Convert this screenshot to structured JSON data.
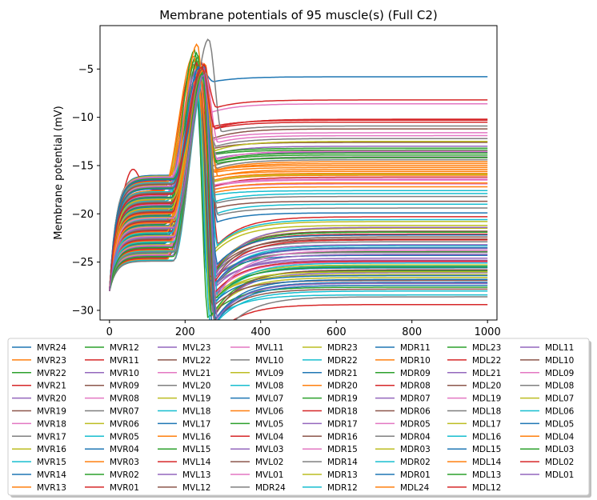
{
  "chart_data": {
    "type": "line",
    "title": "Membrane potentials of 95 muscle(s) (Full C2)",
    "xlabel": "",
    "ylabel": "Membrane potential (mV)",
    "xlim": [
      -25,
      1025
    ],
    "ylim": [
      -31,
      -0.5
    ],
    "xticks": [
      0,
      200,
      400,
      600,
      800,
      1000
    ],
    "yticks": [
      -30,
      -25,
      -20,
      -15,
      -10,
      -5
    ],
    "grid": false,
    "legend_position": "below plot, 8 columns",
    "palette": [
      "#1f77b4",
      "#ff7f0e",
      "#2ca02c",
      "#d62728",
      "#9467bd",
      "#8c564b",
      "#e377c2",
      "#7f7f7f",
      "#bcbd22",
      "#17becf"
    ],
    "x_end": 1000,
    "series": [
      {
        "name": "MVR24",
        "peak": -4.8,
        "peak_t": 240,
        "final": -5.8
      },
      {
        "name": "MVR23",
        "peak": -4.2,
        "peak_t": 235,
        "final": -15.8
      },
      {
        "name": "MVR22",
        "peak": -3.9,
        "peak_t": 228,
        "final": -13.4
      },
      {
        "name": "MVR21",
        "peak": -4.5,
        "peak_t": 222,
        "final": -10.3
      },
      {
        "name": "MVR20",
        "peak": -5.1,
        "peak_t": 230,
        "final": -24.8
      },
      {
        "name": "MVR19",
        "peak": -4.9,
        "peak_t": 236,
        "final": -21.8
      },
      {
        "name": "MVR18",
        "peak": -5.4,
        "peak_t": 242,
        "final": -16.5
      },
      {
        "name": "MVR17",
        "peak": -5.8,
        "peak_t": 238,
        "final": -14.1
      },
      {
        "name": "MVR16",
        "peak": -4.6,
        "peak_t": 226,
        "final": -20.8
      },
      {
        "name": "MVR15",
        "peak": -5.6,
        "peak_t": 232,
        "final": -17.6
      },
      {
        "name": "MVR14",
        "peak": -5.3,
        "peak_t": 244,
        "final": -27.1
      },
      {
        "name": "MVR13",
        "peak": -4.1,
        "peak_t": 225,
        "final": -15.0
      },
      {
        "name": "MVR12",
        "peak": -3.3,
        "peak_t": 232,
        "final": -23.9
      },
      {
        "name": "MVR11",
        "peak": -4.4,
        "peak_t": 246,
        "final": -29.4
      },
      {
        "name": "MVR10",
        "peak": -5.2,
        "peak_t": 240,
        "final": -26.1
      },
      {
        "name": "MVR09",
        "peak": -5.6,
        "peak_t": 234,
        "final": -12.6
      },
      {
        "name": "MVR08",
        "peak": -5.0,
        "peak_t": 228,
        "final": -8.6
      },
      {
        "name": "MVR07",
        "peak": -6.1,
        "peak_t": 236,
        "final": -22.9
      },
      {
        "name": "MVR06",
        "peak": -5.2,
        "peak_t": 238,
        "final": -26.3
      },
      {
        "name": "MVR05",
        "peak": -5.9,
        "peak_t": 242,
        "final": -25.4
      },
      {
        "name": "MVR04",
        "peak": -5.5,
        "peak_t": 226,
        "final": -24.3
      },
      {
        "name": "MVR03",
        "peak": -3.6,
        "peak_t": 222,
        "final": -16.0
      },
      {
        "name": "MVR02",
        "peak": -3.0,
        "peak_t": 226,
        "final": -27.6
      },
      {
        "name": "MVR01",
        "peak": -4.3,
        "peak_t": 232,
        "final": -22.1
      },
      {
        "name": "MVL23",
        "peak": -5.7,
        "peak_t": 244,
        "final": -13.6
      },
      {
        "name": "MVL22",
        "peak": -6.3,
        "peak_t": 240,
        "final": -11.2
      },
      {
        "name": "MVL21",
        "peak": -5.8,
        "peak_t": 236,
        "final": -25.0
      },
      {
        "name": "MVL20",
        "peak": -6.0,
        "peak_t": 242,
        "final": -24.0
      },
      {
        "name": "MVL19",
        "peak": -5.1,
        "peak_t": 234,
        "final": -26.6
      },
      {
        "name": "MVL18",
        "peak": -6.4,
        "peak_t": 232,
        "final": -28.4
      },
      {
        "name": "MVL17",
        "peak": -4.7,
        "peak_t": 238,
        "final": -27.4
      },
      {
        "name": "MVL16",
        "peak": -6.2,
        "peak_t": 230,
        "final": -15.6
      },
      {
        "name": "MVL15",
        "peak": -3.7,
        "peak_t": 236,
        "final": -25.9
      },
      {
        "name": "MVL14",
        "peak": -5.0,
        "peak_t": 244,
        "final": -10.5
      },
      {
        "name": "MVL13",
        "peak": -5.3,
        "peak_t": 230,
        "final": -13.0
      },
      {
        "name": "MVL12",
        "peak": -5.9,
        "peak_t": 236,
        "final": -22.6
      },
      {
        "name": "MVL11",
        "peak": -6.1,
        "peak_t": 242,
        "final": -16.9
      },
      {
        "name": "MVL10",
        "peak": -5.4,
        "peak_t": 246,
        "final": -12.2
      },
      {
        "name": "MVL09",
        "peak": -6.5,
        "peak_t": 238,
        "final": -21.2
      },
      {
        "name": "MVL08",
        "peak": -5.7,
        "peak_t": 240,
        "final": -23.3
      },
      {
        "name": "MVL07",
        "peak": -4.8,
        "peak_t": 236,
        "final": -25.6
      },
      {
        "name": "MVL06",
        "peak": -6.3,
        "peak_t": 232,
        "final": -14.8
      },
      {
        "name": "MVL05",
        "peak": -5.5,
        "peak_t": 246,
        "final": -13.9
      },
      {
        "name": "MVL04",
        "peak": -6.6,
        "peak_t": 240,
        "final": -16.2
      },
      {
        "name": "MVL03",
        "peak": -6.0,
        "peak_t": 244,
        "final": -23.6
      },
      {
        "name": "MVL02",
        "peak": -5.6,
        "peak_t": 238,
        "final": -26.9
      },
      {
        "name": "MVL01",
        "peak": -5.9,
        "peak_t": 234,
        "final": -11.6
      },
      {
        "name": "MDR24",
        "peak": -1.9,
        "peak_t": 262,
        "final": -10.9
      },
      {
        "name": "MDR23",
        "peak": -5.2,
        "peak_t": 248,
        "final": -21.5
      },
      {
        "name": "MDR22",
        "peak": -5.0,
        "peak_t": 246,
        "final": -28.0
      },
      {
        "name": "MDR21",
        "peak": -4.6,
        "peak_t": 250,
        "final": -19.9
      },
      {
        "name": "MDR20",
        "peak": -4.4,
        "peak_t": 252,
        "final": -15.4
      },
      {
        "name": "MDR19",
        "peak": -5.3,
        "peak_t": 244,
        "final": -13.2
      },
      {
        "name": "MDR18",
        "peak": -4.9,
        "peak_t": 248,
        "final": -8.2
      },
      {
        "name": "MDR17",
        "peak": -5.5,
        "peak_t": 250,
        "final": -24.6
      },
      {
        "name": "MDR16",
        "peak": -5.8,
        "peak_t": 246,
        "final": -22.4
      },
      {
        "name": "MDR15",
        "peak": -5.1,
        "peak_t": 242,
        "final": -16.4
      },
      {
        "name": "MDR14",
        "peak": -5.7,
        "peak_t": 248,
        "final": -14.4
      },
      {
        "name": "MDR13",
        "peak": -5.4,
        "peak_t": 244,
        "final": -25.3
      },
      {
        "name": "MDR12",
        "peak": -5.9,
        "peak_t": 250,
        "final": -19.0
      },
      {
        "name": "MDR11",
        "peak": -5.2,
        "peak_t": 246,
        "final": -23.5
      },
      {
        "name": "MDR10",
        "peak": -5.0,
        "peak_t": 242,
        "final": -15.2
      },
      {
        "name": "MDR09",
        "peak": -4.7,
        "peak_t": 248,
        "final": -21.9
      },
      {
        "name": "MDR08",
        "peak": -4.5,
        "peak_t": 252,
        "final": -20.3
      },
      {
        "name": "MDR07",
        "peak": -5.6,
        "peak_t": 246,
        "final": -24.2
      },
      {
        "name": "MDR06",
        "peak": -5.3,
        "peak_t": 244,
        "final": -27.8
      },
      {
        "name": "MDR05",
        "peak": -5.9,
        "peak_t": 250,
        "final": -13.5
      },
      {
        "name": "MDR04",
        "peak": -5.5,
        "peak_t": 248,
        "final": -18.2
      },
      {
        "name": "MDR03",
        "peak": -5.1,
        "peak_t": 244,
        "final": -12.5
      },
      {
        "name": "MDR02",
        "peak": -5.8,
        "peak_t": 252,
        "final": -25.1
      },
      {
        "name": "MDR01",
        "peak": -5.4,
        "peak_t": 246,
        "final": -26.4
      },
      {
        "name": "MDL24",
        "peak": -2.4,
        "peak_t": 232,
        "final": -16.8
      },
      {
        "name": "MDL23",
        "peak": -5.6,
        "peak_t": 248,
        "final": -14.2
      },
      {
        "name": "MDL22",
        "peak": -5.2,
        "peak_t": 244,
        "final": -22.7
      },
      {
        "name": "MDL21",
        "peak": -4.9,
        "peak_t": 250,
        "final": -23.2
      },
      {
        "name": "MDL20",
        "peak": -5.7,
        "peak_t": 246,
        "final": -25.8
      },
      {
        "name": "MDL19",
        "peak": -5.3,
        "peak_t": 252,
        "final": -11.9
      },
      {
        "name": "MDL18",
        "peak": -5.9,
        "peak_t": 248,
        "final": -28.6
      },
      {
        "name": "MDL17",
        "peak": -5.0,
        "peak_t": 244,
        "final": -15.9
      },
      {
        "name": "MDL16",
        "peak": -5.5,
        "peak_t": 250,
        "final": -20.6
      },
      {
        "name": "MDL15",
        "peak": -5.8,
        "peak_t": 246,
        "final": -26.8
      },
      {
        "name": "MDL14",
        "peak": -5.1,
        "peak_t": 242,
        "final": -17.2
      },
      {
        "name": "MDL13",
        "peak": -5.4,
        "peak_t": 248,
        "final": -13.7
      },
      {
        "name": "MDL12",
        "peak": -5.6,
        "peak_t": 244,
        "final": -24.9
      },
      {
        "name": "MDL11",
        "peak": -5.3,
        "peak_t": 250,
        "final": -21.4
      },
      {
        "name": "MDL10",
        "peak": -5.0,
        "peak_t": 246,
        "final": -18.7
      },
      {
        "name": "MDL09",
        "peak": -5.7,
        "peak_t": 248,
        "final": -23.8
      },
      {
        "name": "MDL08",
        "peak": -5.2,
        "peak_t": 252,
        "final": -19.4
      },
      {
        "name": "MDL07",
        "peak": -5.9,
        "peak_t": 246,
        "final": -26.0
      },
      {
        "name": "MDL06",
        "peak": -5.5,
        "peak_t": 244,
        "final": -17.9
      },
      {
        "name": "MDL05",
        "peak": -5.8,
        "peak_t": 250,
        "final": -22.2
      },
      {
        "name": "MDL04",
        "peak": -5.1,
        "peak_t": 248,
        "final": -14.6
      },
      {
        "name": "MDL03",
        "peak": -5.4,
        "peak_t": 246,
        "final": -25.5
      },
      {
        "name": "MDL02",
        "peak": -4.8,
        "peak_t": 244,
        "final": -10.2
      },
      {
        "name": "MDL01",
        "peak": -5.6,
        "peak_t": 250,
        "final": -27.2
      }
    ]
  }
}
